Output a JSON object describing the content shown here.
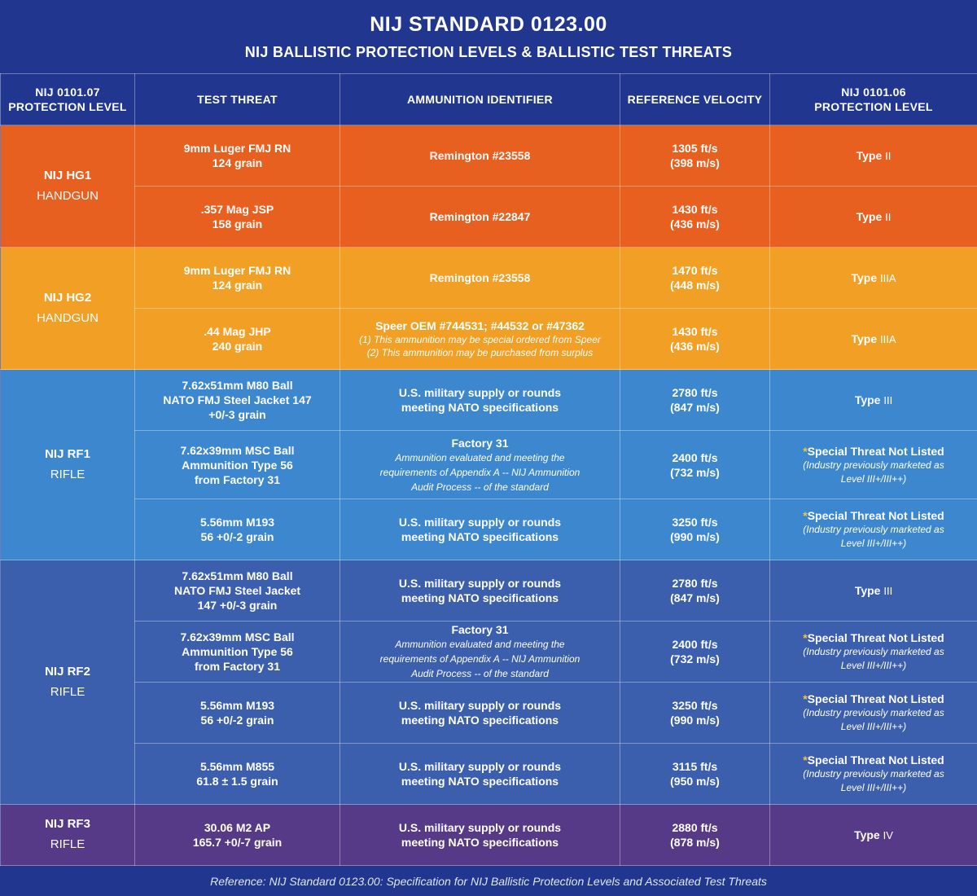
{
  "header": {
    "title": "NIJ STANDARD 0123.00",
    "subtitle": "NIJ BALLISTIC PROTECTION LEVELS & BALLISTIC TEST THREATS"
  },
  "columns": {
    "protection_level_0101_07": [
      "NIJ 0101.07",
      "PROTECTION LEVEL"
    ],
    "test_threat": "TEST THREAT",
    "ammunition_identifier": "AMMUNITION IDENTIFIER",
    "reference_velocity": "REFERENCE VELOCITY",
    "protection_level_0101_06": [
      "NIJ 0101.06",
      "PROTECTION LEVEL"
    ]
  },
  "colors": {
    "background": "#20368f",
    "hg1": "#e8601f",
    "hg2": "#f1a025",
    "rf1": "#3c87ce",
    "rf2": "#3b5fad",
    "rf3": "#563a87",
    "asterisk": "#f6c14a"
  },
  "levels": {
    "hg1": {
      "name": "NIJ HG1",
      "category": "HANDGUN"
    },
    "hg2": {
      "name": "NIJ HG2",
      "category": "HANDGUN"
    },
    "rf1": {
      "name": "NIJ RF1",
      "category": "RIFLE"
    },
    "rf2": {
      "name": "NIJ RF2",
      "category": "RIFLE"
    },
    "rf3": {
      "name": "NIJ RF3",
      "category": "RIFLE"
    }
  },
  "special": {
    "asterisk": "*",
    "title": "Special Threat Not Listed",
    "note": [
      "(Industry previously marketed as",
      "Level III+/III++)"
    ]
  },
  "rows": [
    {
      "threat": [
        "9mm Luger FMJ RN",
        "124 grain"
      ],
      "ammo": "Remington #23558",
      "velocity": [
        "1305 ft/s",
        "(398 m/s)"
      ],
      "type_word": "Type",
      "type_num": "II"
    },
    {
      "threat": [
        ".357 Mag JSP",
        "158 grain"
      ],
      "ammo": "Remington #22847",
      "velocity": [
        "1430 ft/s",
        "(436 m/s)"
      ],
      "type_word": "Type",
      "type_num": "II"
    },
    {
      "threat": [
        "9mm Luger FMJ RN",
        "124 grain"
      ],
      "ammo": "Remington #23558",
      "velocity": [
        "1470 ft/s",
        "(448 m/s)"
      ],
      "type_word": "Type",
      "type_num": "IIIA"
    },
    {
      "threat": [
        ".44 Mag JHP",
        "240 grain"
      ],
      "ammo": "Speer OEM #744531; #44532 or #47362",
      "ammo_notes": [
        "(1) This ammunition may be special ordered from Speer",
        "(2) This ammunition may be purchased from surplus"
      ],
      "velocity": [
        "1430 ft/s",
        "(436 m/s)"
      ],
      "type_word": "Type",
      "type_num": "IIIA"
    },
    {
      "threat": [
        "7.62x51mm M80 Ball",
        "NATO FMJ Steel Jacket 147",
        "+0/-3 grain"
      ],
      "ammo_lines": [
        "U.S. military supply or rounds",
        "meeting NATO specifications"
      ],
      "velocity": [
        "2780 ft/s",
        "(847 m/s)"
      ],
      "type_word": "Type",
      "type_num": "III"
    },
    {
      "threat": [
        "7.62x39mm MSC Ball",
        "Ammunition Type 56",
        "from Factory 31"
      ],
      "ammo": "Factory 31",
      "ammo_notes": [
        "Ammunition evaluated and meeting the",
        "requirements of Appendix A -- NIJ Ammunition",
        "Audit Process -- of the standard"
      ],
      "velocity": [
        "2400 ft/s",
        "(732 m/s)"
      ]
    },
    {
      "threat": [
        "5.56mm M193",
        "56 +0/-2 grain"
      ],
      "ammo_lines": [
        "U.S. military supply or rounds",
        "meeting NATO specifications"
      ],
      "velocity": [
        "3250 ft/s",
        "(990 m/s)"
      ]
    },
    {
      "threat": [
        "7.62x51mm M80 Ball",
        "NATO FMJ Steel Jacket",
        "147 +0/-3 grain"
      ],
      "ammo_lines": [
        "U.S. military supply or rounds",
        "meeting NATO specifications"
      ],
      "velocity": [
        "2780 ft/s",
        "(847 m/s)"
      ],
      "type_word": "Type",
      "type_num": "III"
    },
    {
      "threat": [
        "7.62x39mm MSC Ball",
        "Ammunition Type 56",
        "from Factory 31"
      ],
      "ammo": "Factory 31",
      "ammo_notes": [
        "Ammunition evaluated and meeting the",
        "requirements of Appendix A -- NIJ Ammunition",
        "Audit Process -- of the standard"
      ],
      "velocity": [
        "2400 ft/s",
        "(732 m/s)"
      ]
    },
    {
      "threat": [
        "5.56mm M193",
        "56 +0/-2 grain"
      ],
      "ammo_lines": [
        "U.S. military supply or rounds",
        "meeting NATO specifications"
      ],
      "velocity": [
        "3250 ft/s",
        "(990 m/s)"
      ]
    },
    {
      "threat": [
        "5.56mm M855",
        "61.8 ± 1.5 grain"
      ],
      "ammo_lines": [
        "U.S. military supply or rounds",
        "meeting NATO specifications"
      ],
      "velocity": [
        "3115 ft/s",
        "(950 m/s)"
      ]
    },
    {
      "threat": [
        "30.06 M2 AP",
        "165.7 +0/-7 grain"
      ],
      "ammo_lines": [
        "U.S. military supply or rounds",
        "meeting NATO specifications"
      ],
      "velocity": [
        "2880 ft/s",
        "(878 m/s)"
      ],
      "type_word": "Type",
      "type_num": "IV"
    }
  ],
  "footer": "Reference: NIJ Standard 0123.00: Specification for NIJ Ballistic Protection Levels and Associated Test Threats"
}
